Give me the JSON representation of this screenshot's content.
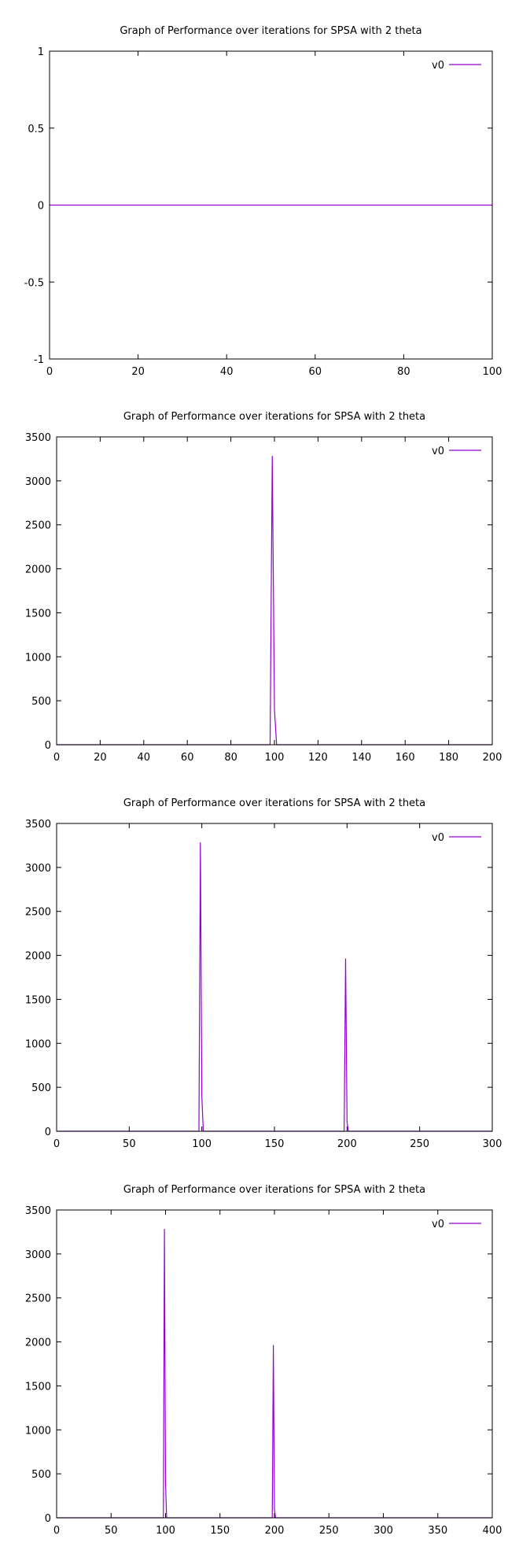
{
  "chart_data": [
    {
      "type": "line",
      "title": "Graph of Performance over iterations for SPSA with 2 theta",
      "xlim": [
        0,
        100
      ],
      "ylim": [
        -1,
        1
      ],
      "x_ticks": [
        "0",
        "20",
        "40",
        "60",
        "80",
        "100"
      ],
      "y_ticks": [
        "-1",
        "-0.5",
        "0",
        "0.5",
        "1"
      ],
      "legend_position": "top-right",
      "series": [
        {
          "name": "v0",
          "color": "#9400d3",
          "points": [
            [
              0,
              0
            ],
            [
              100,
              0
            ]
          ]
        }
      ]
    },
    {
      "type": "line",
      "title": "Graph of Performance over iterations for SPSA with 2 theta",
      "xlim": [
        0,
        200
      ],
      "ylim": [
        0,
        3500
      ],
      "x_ticks": [
        "0",
        "20",
        "40",
        "60",
        "80",
        "100",
        "120",
        "140",
        "160",
        "180",
        "200"
      ],
      "y_ticks": [
        "0",
        "500",
        "1000",
        "1500",
        "2000",
        "2500",
        "3000",
        "3500"
      ],
      "legend_position": "top-right",
      "series": [
        {
          "name": "v0",
          "color": "#9400d3",
          "points": [
            [
              0,
              0
            ],
            [
              98,
              0
            ],
            [
              99,
              3280
            ],
            [
              100,
              400
            ],
            [
              101,
              0
            ],
            [
              200,
              0
            ]
          ]
        }
      ]
    },
    {
      "type": "line",
      "title": "Graph of Performance over iterations for SPSA with 2 theta",
      "xlim": [
        0,
        300
      ],
      "ylim": [
        0,
        3500
      ],
      "x_ticks": [
        "0",
        "50",
        "100",
        "150",
        "200",
        "250",
        "300"
      ],
      "y_ticks": [
        "0",
        "500",
        "1000",
        "1500",
        "2000",
        "2500",
        "3000",
        "3500"
      ],
      "legend_position": "top-right",
      "series": [
        {
          "name": "v0",
          "color": "#9400d3",
          "points": [
            [
              0,
              0
            ],
            [
              98,
              0
            ],
            [
              99,
              3280
            ],
            [
              100,
              400
            ],
            [
              101,
              0
            ],
            [
              198,
              0
            ],
            [
              199,
              1960
            ],
            [
              200,
              100
            ],
            [
              201,
              0
            ],
            [
              300,
              0
            ]
          ]
        }
      ]
    },
    {
      "type": "line",
      "title": "Graph of Performance over iterations for SPSA with 2 theta",
      "xlim": [
        0,
        400
      ],
      "ylim": [
        0,
        3500
      ],
      "x_ticks": [
        "0",
        "50",
        "100",
        "150",
        "200",
        "250",
        "300",
        "350",
        "400"
      ],
      "y_ticks": [
        "0",
        "500",
        "1000",
        "1500",
        "2000",
        "2500",
        "3000",
        "3500"
      ],
      "legend_position": "top-right",
      "series": [
        {
          "name": "v0",
          "color": "#9400d3",
          "points": [
            [
              0,
              0
            ],
            [
              98,
              0
            ],
            [
              99,
              3280
            ],
            [
              100,
              400
            ],
            [
              101,
              0
            ],
            [
              198,
              0
            ],
            [
              199,
              1960
            ],
            [
              200,
              100
            ],
            [
              201,
              0
            ],
            [
              400,
              0
            ]
          ]
        }
      ]
    }
  ]
}
